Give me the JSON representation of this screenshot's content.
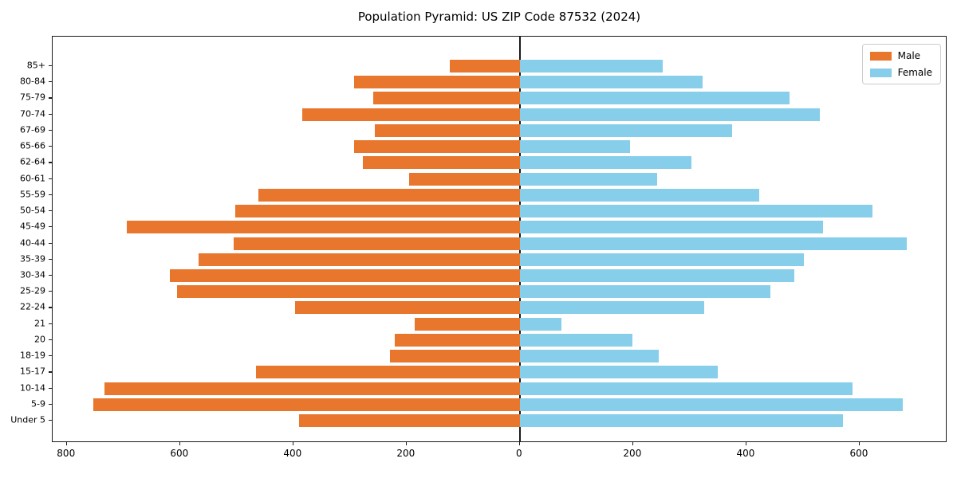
{
  "title": "Population Pyramid: US ZIP Code 87532 (2024)",
  "legend": {
    "male": "Male",
    "female": "Female"
  },
  "colors": {
    "male": "#e8762d",
    "female": "#87ceeb",
    "axis": "#1a1a1a",
    "background": "#ffffff"
  },
  "chart_data": {
    "type": "bar",
    "orientation": "horizontal-pyramid",
    "title": "Population Pyramid: US ZIP Code 87532 (2024)",
    "xlabel": "",
    "ylabel": "",
    "grid": false,
    "legend_position": "upper right",
    "xlim": [
      -825,
      755
    ],
    "x_ticks": [
      {
        "value": -800,
        "label": "800"
      },
      {
        "value": -600,
        "label": "600"
      },
      {
        "value": -400,
        "label": "400"
      },
      {
        "value": -200,
        "label": "200"
      },
      {
        "value": 0,
        "label": "0"
      },
      {
        "value": 200,
        "label": "200"
      },
      {
        "value": 400,
        "label": "400"
      },
      {
        "value": 600,
        "label": "600"
      }
    ],
    "categories": [
      "85+",
      "80-84",
      "75-79",
      "70-74",
      "67-69",
      "65-66",
      "62-64",
      "60-61",
      "55-59",
      "50-54",
      "45-49",
      "40-44",
      "35-39",
      "30-34",
      "25-29",
      "22-24",
      "21",
      "20",
      "18-19",
      "15-17",
      "10-14",
      "5-9",
      "Under 5"
    ],
    "series": [
      {
        "name": "Male",
        "side": "left",
        "values": [
          124,
          293,
          259,
          384,
          256,
          293,
          277,
          195,
          462,
          503,
          694,
          506,
          568,
          618,
          606,
          397,
          186,
          221,
          230,
          466,
          734,
          753,
          390
        ]
      },
      {
        "name": "Female",
        "side": "right",
        "values": [
          252,
          323,
          476,
          529,
          375,
          194,
          303,
          242,
          423,
          623,
          536,
          683,
          502,
          485,
          443,
          325,
          73,
          199,
          245,
          350,
          587,
          676,
          571
        ]
      }
    ]
  }
}
